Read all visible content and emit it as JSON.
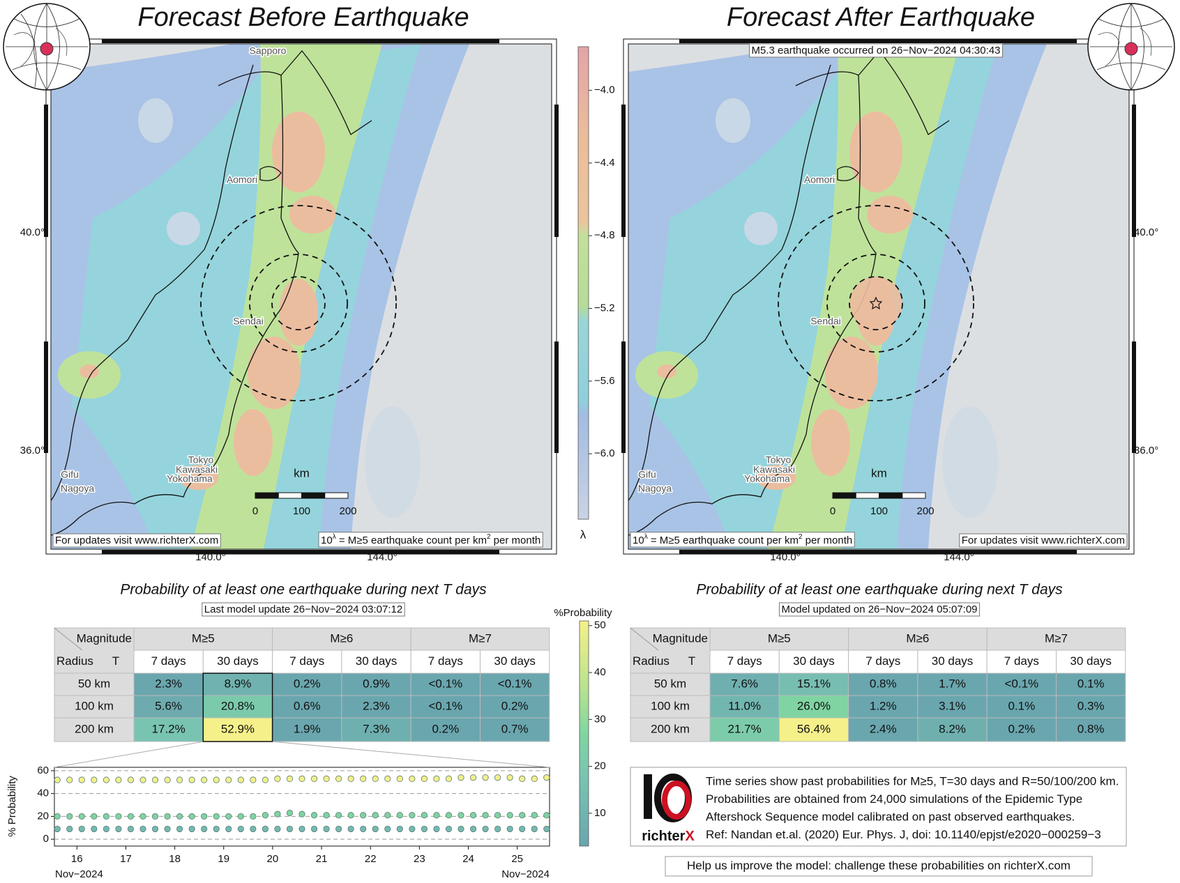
{
  "left_panel": {
    "title": "Forecast Before Earthquake",
    "table_title": "Probability of at least one earthquake during next T days",
    "update_note": "Last model update 26−Nov−2024 03:07:12",
    "rows": [
      [
        "2.3%",
        "8.9%",
        "0.2%",
        "0.9%",
        "<0.1%",
        "<0.1%"
      ],
      [
        "5.6%",
        "20.8%",
        "0.6%",
        "2.3%",
        "<0.1%",
        "0.2%"
      ],
      [
        "17.2%",
        "52.9%",
        "1.9%",
        "7.3%",
        "0.2%",
        "0.7%"
      ]
    ]
  },
  "right_panel": {
    "title": "Forecast After Earthquake",
    "event_note": "M5.3 earthquake occurred on 26−Nov−2024 04:30:43",
    "table_title": "Probability of at least one earthquake during next T days",
    "update_note": "Model updated on 26−Nov−2024 05:07:09",
    "rows": [
      [
        "7.6%",
        "15.1%",
        "0.8%",
        "1.7%",
        "<0.1%",
        "0.1%"
      ],
      [
        "11.0%",
        "26.0%",
        "1.2%",
        "3.1%",
        "0.1%",
        "0.3%"
      ],
      [
        "21.7%",
        "56.4%",
        "2.4%",
        "8.2%",
        "0.2%",
        "0.8%"
      ]
    ]
  },
  "table_header": {
    "magnitude": "Magnitude",
    "radius": "Radius",
    "t": "T",
    "magnitudes": [
      "M≥5",
      "M≥6",
      "M≥7"
    ],
    "periods": [
      "7 days",
      "30 days",
      "7 days",
      "30 days",
      "7 days",
      "30 days"
    ],
    "radii": [
      "50 km",
      "100 km",
      "200 km"
    ]
  },
  "map": {
    "cities": [
      "Sapporo",
      "Aomori",
      "Sendai",
      "Tokyo",
      "Kawasaki",
      "Yokohama",
      "Gifu",
      "Nagoya"
    ],
    "lat_labels": [
      "40.0°",
      "36.0°"
    ],
    "lon_labels": [
      "140.0°",
      "144.0°"
    ],
    "scale_unit": "km",
    "scale_ticks": [
      0,
      100,
      200
    ],
    "site_note": "For updates visit www.richterX.com",
    "density_note": [
      "10",
      "λ",
      " = M≥5 earthquake count per km",
      "2",
      " per month"
    ]
  },
  "lambda_colorbar": {
    "label": "λ",
    "lim": [
      -6.36,
      -3.76
    ],
    "ticks": [
      {
        "value": -4.0,
        "label": "−4.0"
      },
      {
        "value": -4.4,
        "label": "−4.4"
      },
      {
        "value": -4.8,
        "label": "−4.8"
      },
      {
        "value": -5.2,
        "label": "−5.2"
      },
      {
        "value": -5.6,
        "label": "−5.6"
      },
      {
        "value": -6.0,
        "label": "−6.0"
      }
    ]
  },
  "prob_colorbar": {
    "label": "%Probability",
    "lim": [
      3,
      51
    ],
    "ticks": [
      10,
      20,
      30,
      40,
      50
    ]
  },
  "timeseries": {
    "type": "scatter",
    "ylabel": "% Probability",
    "xlim": [
      15.54,
      25.66
    ],
    "ylim": [
      -6,
      63
    ],
    "xticks": [
      16,
      17,
      18,
      19,
      20,
      21,
      22,
      23,
      24,
      25
    ],
    "yticks": [
      0,
      20,
      40,
      60
    ],
    "date_labels": [
      "Nov−2024",
      "Nov−2024"
    ],
    "grid": true,
    "x": [
      15.6,
      15.85,
      16.1,
      16.35,
      16.6,
      16.85,
      17.1,
      17.35,
      17.6,
      17.85,
      18.1,
      18.35,
      18.6,
      18.85,
      19.1,
      19.35,
      19.6,
      19.85,
      20.1,
      20.35,
      20.6,
      20.85,
      21.1,
      21.35,
      21.6,
      21.85,
      22.1,
      22.35,
      22.6,
      22.85,
      23.1,
      23.35,
      23.6,
      23.85,
      24.1,
      24.35,
      24.6,
      24.85,
      25.1,
      25.35,
      25.6
    ],
    "series": [
      {
        "color": "#f2ef8c",
        "values": [
          52,
          52,
          52,
          52,
          52,
          52,
          52,
          52,
          52,
          52,
          52,
          52,
          52,
          52,
          52,
          52,
          52,
          52,
          53,
          53,
          53,
          53,
          53,
          53,
          53,
          53,
          53,
          53,
          53,
          53,
          53,
          53,
          53,
          54,
          54,
          54,
          54,
          54,
          53,
          53,
          54
        ]
      },
      {
        "color": "#80d3a2",
        "values": [
          20,
          20,
          20,
          20,
          20,
          20,
          20,
          20,
          20,
          20,
          20,
          20,
          20,
          20,
          20,
          20,
          20,
          21,
          22,
          23,
          22,
          21,
          21,
          21,
          21,
          21,
          21,
          21,
          21,
          21,
          21,
          21,
          21,
          21,
          21,
          21,
          21,
          21,
          21,
          21,
          21
        ]
      },
      {
        "color": "#74b9b2",
        "values": [
          9,
          9,
          9,
          9,
          9,
          9,
          9,
          9,
          9,
          9,
          9,
          9,
          9,
          9,
          9,
          9,
          9,
          9,
          9,
          9,
          9,
          9,
          9,
          9,
          9,
          9,
          9,
          9,
          9,
          9,
          9,
          9,
          9,
          9,
          9,
          9,
          9,
          9,
          9,
          9,
          9
        ]
      }
    ]
  },
  "info": {
    "lines": [
      "Time series show past probabilities for M≥5, T=30 days and R=50/100/200 km.",
      "Probabilities are obtained from 24,000 simulations of the Epidemic Type",
      "Aftershock Sequence model calibrated on past observed earthquakes.",
      "Ref: Nandan et.al. (2020) Eur. Phys. J, doi: 10.1140/epjst/e2020−000259−3"
    ],
    "logo": [
      "richter",
      "X"
    ],
    "help": "Help us improve the model: challenge these probabilities on richterX.com"
  }
}
